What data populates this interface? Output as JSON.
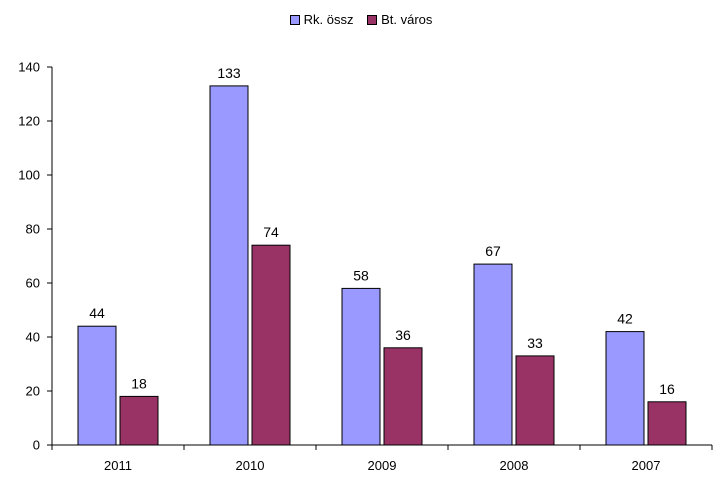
{
  "chart_data": {
    "type": "bar",
    "categories": [
      "2011",
      "2010",
      "2009",
      "2008",
      "2007"
    ],
    "series": [
      {
        "name": "Rk. össz",
        "values": [
          44,
          133,
          58,
          67,
          42
        ],
        "color": "#9999ff"
      },
      {
        "name": "Bt. város",
        "values": [
          18,
          74,
          36,
          33,
          16
        ],
        "color": "#993366"
      }
    ],
    "ylim": [
      0,
      140
    ],
    "yticks": [
      0,
      20,
      40,
      60,
      80,
      100,
      120,
      140
    ],
    "grid": false,
    "legend_position": "top-center",
    "data_labels": true
  }
}
